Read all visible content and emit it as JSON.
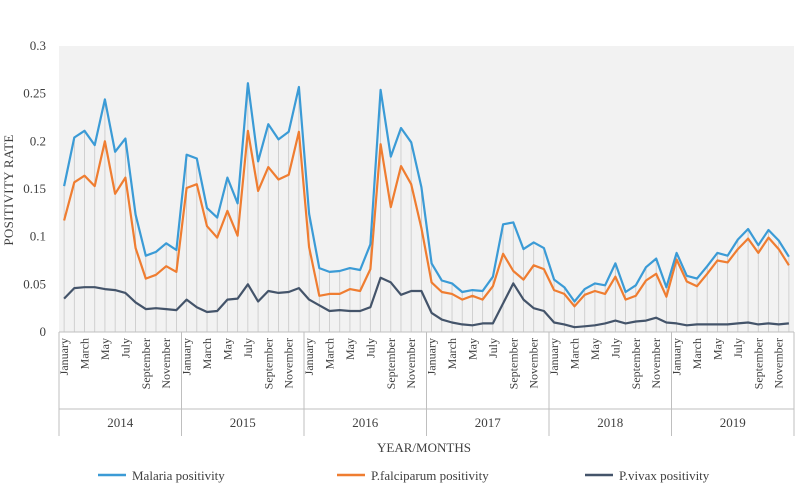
{
  "chart_data": {
    "type": "line",
    "title": "",
    "xlabel": "YEAR/MONTHS",
    "ylabel": "POSITIVITY RATE",
    "ylim": [
      0,
      0.3
    ],
    "yticks": [
      "0",
      "0.05",
      "0.1",
      "0.15",
      "0.2",
      "0.25",
      "0.3"
    ],
    "grid": false,
    "legend_position": "bottom",
    "years": [
      "2014",
      "2015",
      "2016",
      "2017",
      "2018",
      "2019"
    ],
    "month_labels": [
      "January",
      "March",
      "May",
      "July",
      "September",
      "November"
    ],
    "months_per_year": 12,
    "series": [
      {
        "name": "Malaria positivity",
        "color": "#3b9bd6",
        "values": [
          0.153,
          0.204,
          0.211,
          0.196,
          0.244,
          0.189,
          0.203,
          0.123,
          0.08,
          0.084,
          0.093,
          0.086,
          0.186,
          0.182,
          0.13,
          0.12,
          0.162,
          0.135,
          0.261,
          0.179,
          0.218,
          0.202,
          0.21,
          0.257,
          0.124,
          0.067,
          0.063,
          0.064,
          0.067,
          0.065,
          0.092,
          0.254,
          0.184,
          0.214,
          0.199,
          0.152,
          0.072,
          0.054,
          0.051,
          0.042,
          0.044,
          0.043,
          0.058,
          0.113,
          0.115,
          0.087,
          0.094,
          0.088,
          0.055,
          0.047,
          0.032,
          0.045,
          0.051,
          0.049,
          0.072,
          0.042,
          0.049,
          0.068,
          0.077,
          0.047,
          0.083,
          0.059,
          0.056,
          0.069,
          0.083,
          0.08,
          0.097,
          0.108,
          0.091,
          0.107,
          0.096,
          0.079
        ]
      },
      {
        "name": "P.falciparum positivity",
        "color": "#ef7d31",
        "values": [
          0.117,
          0.157,
          0.164,
          0.153,
          0.2,
          0.145,
          0.162,
          0.088,
          0.056,
          0.06,
          0.069,
          0.063,
          0.151,
          0.155,
          0.111,
          0.099,
          0.127,
          0.101,
          0.211,
          0.148,
          0.173,
          0.16,
          0.165,
          0.21,
          0.089,
          0.038,
          0.04,
          0.04,
          0.045,
          0.043,
          0.066,
          0.197,
          0.131,
          0.174,
          0.155,
          0.109,
          0.052,
          0.042,
          0.04,
          0.034,
          0.038,
          0.034,
          0.048,
          0.082,
          0.064,
          0.055,
          0.07,
          0.066,
          0.044,
          0.04,
          0.027,
          0.039,
          0.043,
          0.04,
          0.058,
          0.034,
          0.038,
          0.054,
          0.061,
          0.037,
          0.076,
          0.053,
          0.048,
          0.061,
          0.075,
          0.073,
          0.087,
          0.098,
          0.083,
          0.099,
          0.087,
          0.07
        ]
      },
      {
        "name": "P.vivax positivity",
        "color": "#44546a",
        "values": [
          0.035,
          0.046,
          0.047,
          0.047,
          0.045,
          0.044,
          0.041,
          0.031,
          0.024,
          0.025,
          0.024,
          0.023,
          0.034,
          0.026,
          0.021,
          0.022,
          0.034,
          0.035,
          0.05,
          0.032,
          0.043,
          0.041,
          0.042,
          0.046,
          0.034,
          0.028,
          0.022,
          0.023,
          0.022,
          0.022,
          0.026,
          0.057,
          0.052,
          0.039,
          0.043,
          0.043,
          0.02,
          0.013,
          0.01,
          0.008,
          0.007,
          0.009,
          0.009,
          0.03,
          0.051,
          0.034,
          0.025,
          0.022,
          0.01,
          0.008,
          0.005,
          0.006,
          0.007,
          0.009,
          0.012,
          0.009,
          0.011,
          0.012,
          0.015,
          0.01,
          0.009,
          0.007,
          0.008,
          0.008,
          0.008,
          0.008,
          0.009,
          0.01,
          0.008,
          0.009,
          0.008,
          0.009
        ]
      }
    ]
  }
}
